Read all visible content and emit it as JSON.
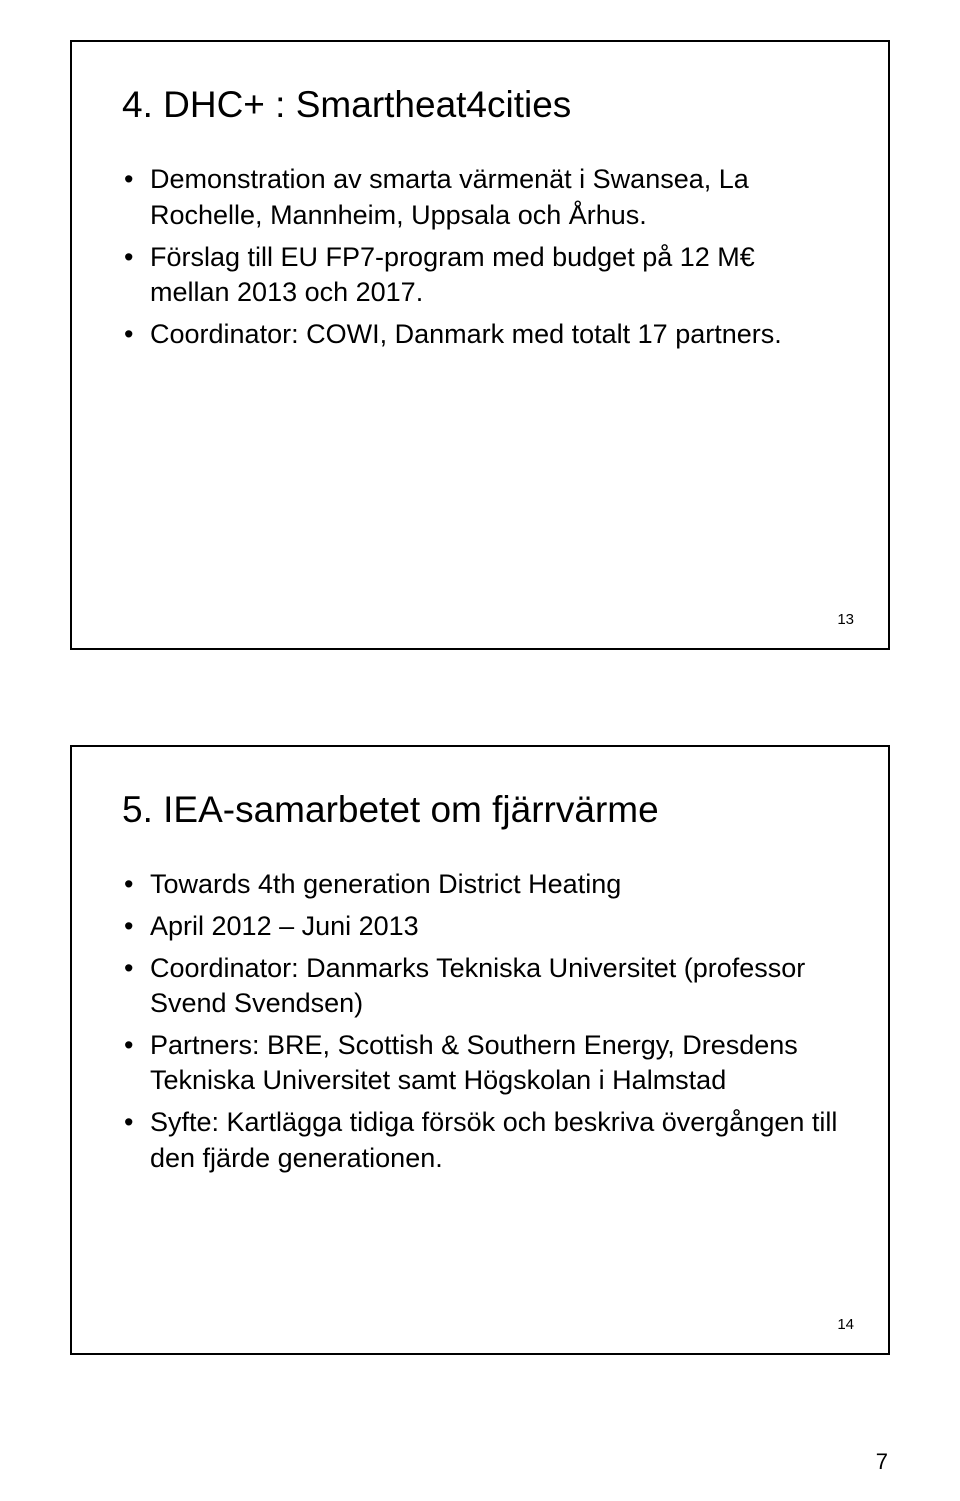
{
  "page": {
    "number": "7"
  },
  "slides": [
    {
      "title": "4. DHC+ : Smartheat4cities",
      "bullets": [
        "Demonstration av smarta värmenät i Swansea, La Rochelle, Mannheim, Uppsala och Århus.",
        "Förslag till EU FP7-program med budget på 12 M€ mellan 2013 och 2017.",
        "Coordinator: COWI, Danmark med totalt 17 partners."
      ],
      "slide_number": "13"
    },
    {
      "title": "5. IEA-samarbetet om fjärrvärme",
      "bullets": [
        "Towards 4th generation District Heating",
        "April 2012 – Juni 2013",
        "Coordinator: Danmarks Tekniska Universitet (professor Svend Svendsen)",
        "Partners: BRE, Scottish & Southern Energy, Dresdens Tekniska Universitet samt Högskolan i Halmstad",
        "Syfte: Kartlägga tidiga försök och beskriva övergången till den fjärde generationen."
      ],
      "slide_number": "14"
    }
  ]
}
